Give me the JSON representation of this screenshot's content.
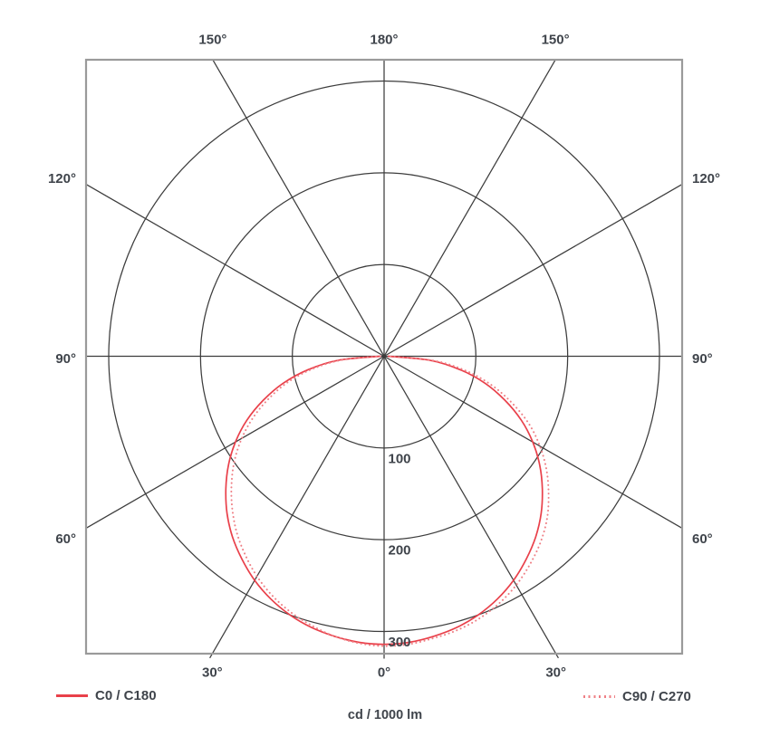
{
  "chart_data": {
    "type": "polar",
    "subtype": "photometric-light-distribution",
    "unit_label": "cd / 1000 lm",
    "radial_unit": "cd",
    "radial_ticks": [
      100,
      200,
      300
    ],
    "radial_tick_labels": [
      "100",
      "200",
      "300"
    ],
    "angle_grid_step_deg": 30,
    "angle_labels": [
      {
        "gamma": 0,
        "text": "0°"
      },
      {
        "gamma": -30,
        "text": "30°"
      },
      {
        "gamma": 30,
        "text": "30°"
      },
      {
        "gamma": -60,
        "text": "60°"
      },
      {
        "gamma": 60,
        "text": "60°"
      },
      {
        "gamma": -90,
        "text": "90°"
      },
      {
        "gamma": 90,
        "text": "90°"
      },
      {
        "gamma": -120,
        "text": "120°"
      },
      {
        "gamma": 120,
        "text": "120°"
      },
      {
        "gamma": -150,
        "text": "150°"
      },
      {
        "gamma": 150,
        "text": "150°"
      },
      {
        "gamma": 180,
        "text": "180°"
      }
    ],
    "series": [
      {
        "name": "C0 / C180",
        "style": "solid",
        "color": "#e9404a",
        "gamma_start": -90,
        "gamma_step": 5,
        "values": [
          4,
          50,
          84,
          114,
          140,
          165,
          187,
          207,
          225,
          242,
          257,
          270,
          282,
          292,
          300,
          306,
          310,
          313,
          314,
          313,
          310,
          306,
          300,
          292,
          282,
          270,
          257,
          242,
          225,
          207,
          187,
          165,
          140,
          114,
          84,
          50,
          4
        ]
      },
      {
        "name": "C90 / C270",
        "style": "dotted",
        "color": "#ef8086",
        "gamma_start": -90,
        "gamma_step": 5,
        "values": [
          4,
          46,
          79,
          108,
          133,
          157,
          179,
          199,
          217,
          234,
          250,
          264,
          277,
          288,
          297,
          304,
          310,
          314,
          316,
          315,
          312,
          309,
          304,
          297,
          288,
          277,
          265,
          251,
          234,
          216,
          196,
          174,
          148,
          121,
          90,
          54,
          4
        ]
      }
    ],
    "legend": [
      {
        "label": "C0 / C180",
        "style": "solid"
      },
      {
        "label": "C90 / C270",
        "style": "dotted"
      }
    ],
    "colors": {
      "grid": "#3d3d3d",
      "border": "#9a9a9a",
      "text": "#3f444b",
      "curve_solid": "#e9404a",
      "curve_dotted": "#ef8086"
    }
  }
}
